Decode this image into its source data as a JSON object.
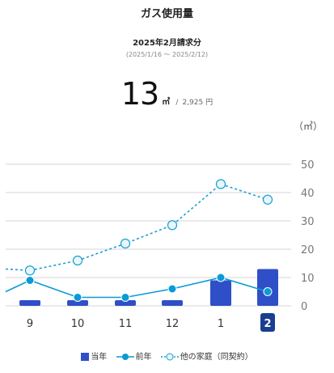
{
  "header": {
    "title": "ガス使用量",
    "period": "2025年2月請求分",
    "range": "(2025/1/16 〜 2025/2/12)"
  },
  "usage": {
    "value": "13",
    "unit": "㎥",
    "separator": "/",
    "price": "2,925 円"
  },
  "colors": {
    "current": "#2f4fc9",
    "current_selected": "#1a3f8f",
    "previous": "#0a9ad6",
    "others": "#1b9fd0",
    "grid": "#d6d6d6",
    "axis_text": "#777777"
  },
  "chart_data": {
    "type": "bar",
    "unit_label": "（㎥）",
    "categories": [
      "9",
      "10",
      "11",
      "12",
      "1",
      "2"
    ],
    "selected_category": "2",
    "ylim": [
      0,
      50
    ],
    "yticks": [
      0,
      10,
      20,
      30,
      40,
      50
    ],
    "grid": true,
    "legend_position": "bottom",
    "series": [
      {
        "name": "当年",
        "kind": "bar",
        "values": [
          2,
          2,
          2,
          2,
          9,
          13
        ]
      },
      {
        "name": "前年",
        "kind": "line",
        "values": [
          9,
          3,
          3,
          6,
          10,
          5
        ],
        "edge_in": 5
      },
      {
        "name": "他の家庭（同契約）",
        "kind": "dashed-line",
        "values": [
          12.5,
          16,
          22,
          28.5,
          43,
          37.5
        ],
        "edge_in": 13
      }
    ]
  }
}
